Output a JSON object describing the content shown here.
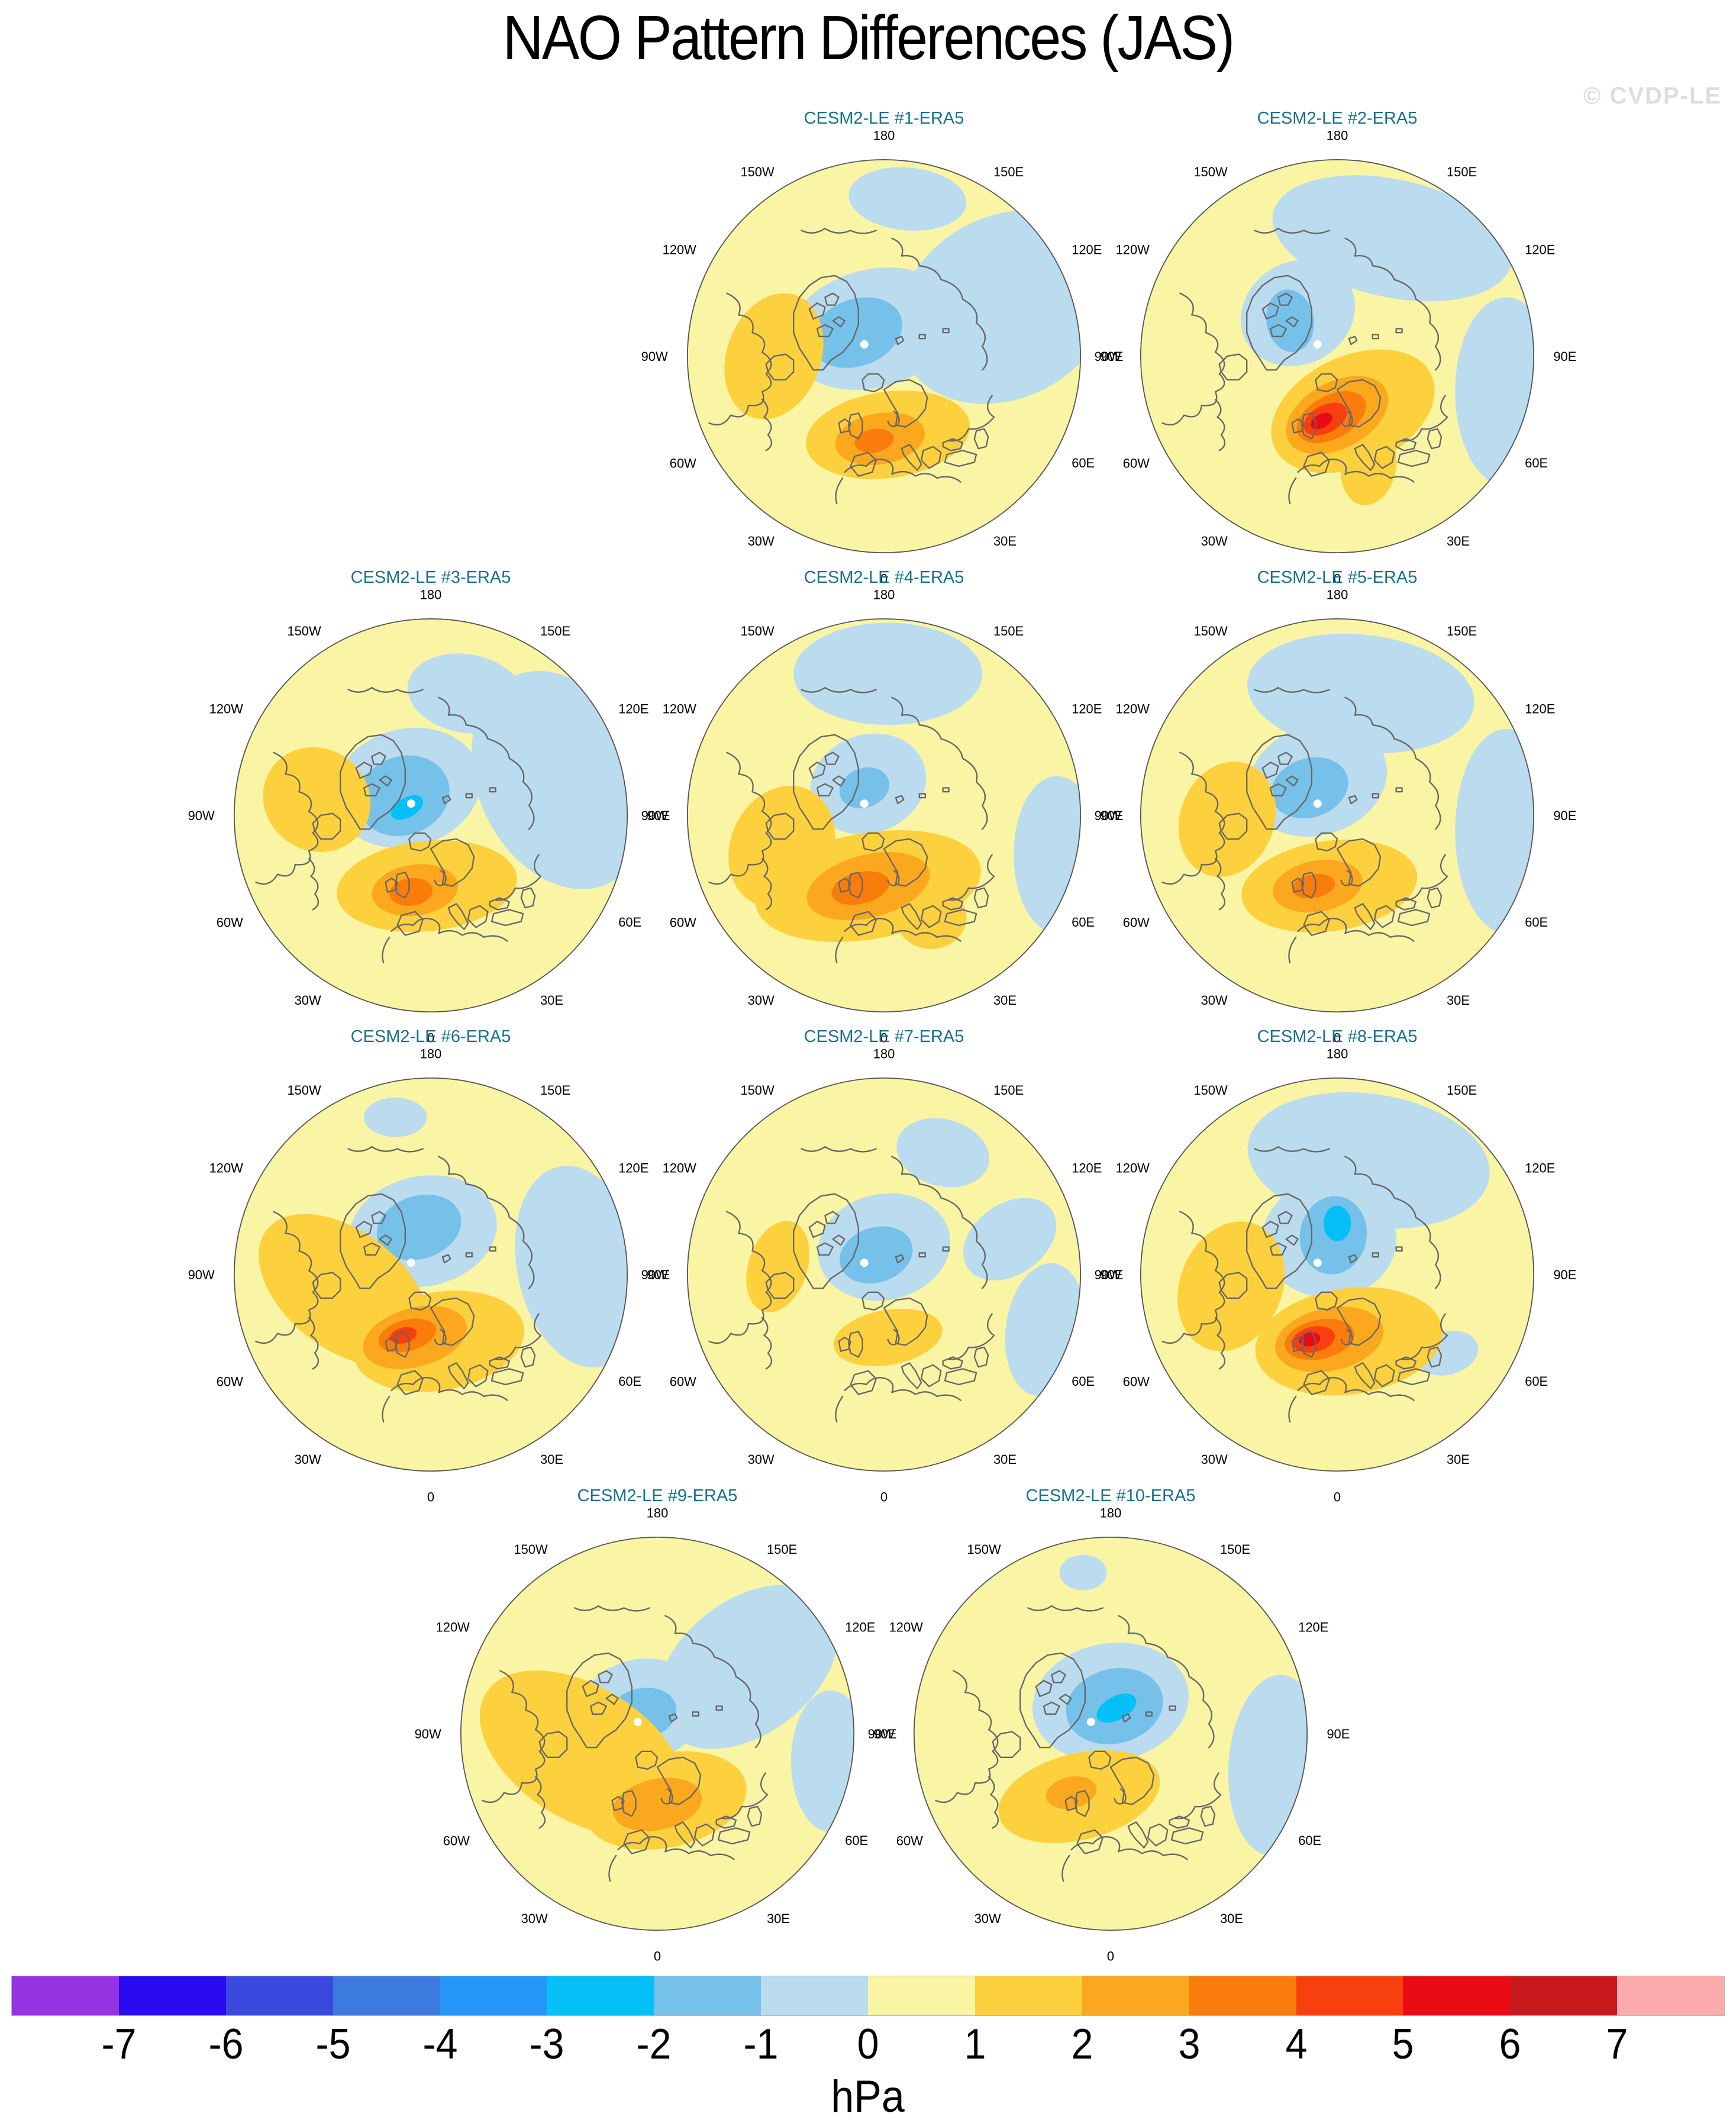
{
  "title": "NAO Pattern Differences (JAS)",
  "watermark": "© CVDP-LE",
  "panels": [
    {
      "title": "CESM2-LE #1-ERA5",
      "blobs": [
        [
          "n1",
          62,
          -25,
          58,
          46,
          -30
        ],
        [
          "n1",
          12,
          -80,
          30,
          16,
          5
        ],
        [
          "n1",
          -6,
          -14,
          44,
          30,
          -15
        ],
        [
          "n2",
          -14,
          -12,
          24,
          17,
          -20
        ],
        [
          "P1",
          -56,
          0,
          24,
          33,
          20
        ],
        [
          "P1",
          2,
          40,
          42,
          22,
          -8
        ],
        [
          "P2",
          -2,
          42,
          23,
          13,
          -10
        ],
        [
          "P3",
          -5,
          43,
          10,
          6,
          -10
        ]
      ]
    },
    {
      "title": "CESM2-LE #2-ERA5",
      "blobs": [
        [
          "n1",
          28,
          -60,
          62,
          30,
          12
        ],
        [
          "n1",
          86,
          18,
          26,
          48,
          0
        ],
        [
          "n1",
          -20,
          -22,
          30,
          26,
          -30
        ],
        [
          "n2",
          -24,
          -18,
          12,
          16,
          -10
        ],
        [
          "P1",
          16,
          56,
          14,
          20,
          10
        ],
        [
          "P1",
          8,
          28,
          44,
          28,
          -25
        ],
        [
          "P2",
          0,
          30,
          28,
          17,
          -28
        ],
        [
          "P3",
          -3,
          31,
          19,
          11,
          -28
        ],
        [
          "P4",
          -6,
          32,
          12,
          7,
          -28
        ],
        [
          "P5",
          -8,
          33,
          6,
          3.5,
          -28
        ]
      ]
    },
    {
      "title": "CESM2-LE #3-ERA5",
      "blobs": [
        [
          "n1",
          66,
          -18,
          42,
          58,
          -25
        ],
        [
          "n1",
          18,
          -62,
          30,
          20,
          10
        ],
        [
          "n1",
          -12,
          -14,
          38,
          30,
          -15
        ],
        [
          "n2",
          -14,
          -10,
          24,
          20,
          -20
        ],
        [
          "n3",
          -12,
          -4,
          9,
          5,
          -30
        ],
        [
          "P1",
          -58,
          -8,
          28,
          26,
          35
        ],
        [
          "P1",
          -2,
          36,
          46,
          23,
          -6
        ],
        [
          "P2",
          -8,
          38,
          22,
          13,
          -8
        ],
        [
          "P3",
          -10,
          39,
          11,
          7,
          -8
        ]
      ]
    },
    {
      "title": "CESM2-LE #4-ERA5",
      "blobs": [
        [
          "n1",
          2,
          -72,
          48,
          26,
          0
        ],
        [
          "n1",
          88,
          20,
          22,
          40,
          0
        ],
        [
          "n1",
          -8,
          -16,
          30,
          25,
          -20
        ],
        [
          "n2",
          -10,
          -14,
          13,
          10,
          -20
        ],
        [
          "P1",
          -52,
          16,
          26,
          32,
          25
        ],
        [
          "P1",
          24,
          52,
          18,
          16,
          0
        ],
        [
          "P1",
          -8,
          36,
          58,
          27,
          -10
        ],
        [
          "P2",
          -8,
          36,
          32,
          16,
          -14
        ],
        [
          "P3",
          -12,
          37,
          15,
          8,
          -14
        ]
      ]
    },
    {
      "title": "CESM2-LE #5-ERA5",
      "blobs": [
        [
          "n1",
          12,
          -62,
          58,
          30,
          6
        ],
        [
          "n1",
          86,
          8,
          26,
          52,
          0
        ],
        [
          "n1",
          -10,
          -18,
          36,
          28,
          -18
        ],
        [
          "n2",
          -14,
          -14,
          20,
          15,
          -18
        ],
        [
          "P1",
          -56,
          2,
          24,
          30,
          20
        ],
        [
          "P1",
          -4,
          36,
          45,
          23,
          -8
        ],
        [
          "P2",
          -10,
          36,
          23,
          13,
          -10
        ],
        [
          "P3",
          -12,
          36,
          11,
          6,
          -10
        ]
      ]
    },
    {
      "title": "CESM2-LE #6-ERA5",
      "blobs": [
        [
          "n1",
          76,
          -4,
          32,
          52,
          -12
        ],
        [
          "n1",
          -18,
          -80,
          16,
          10,
          0
        ],
        [
          "n1",
          -4,
          -22,
          38,
          28,
          -12
        ],
        [
          "n2",
          -6,
          -24,
          22,
          16,
          -18
        ],
        [
          "P1",
          -44,
          8,
          50,
          30,
          38
        ],
        [
          "P1",
          4,
          34,
          44,
          25,
          -10
        ],
        [
          "P2",
          -8,
          32,
          27,
          15,
          -15
        ],
        [
          "P3",
          -12,
          31,
          15,
          8,
          -15
        ],
        [
          "P4",
          -14,
          31,
          7,
          4,
          -15
        ]
      ]
    },
    {
      "title": "CESM2-LE #7-ERA5",
      "blobs": [
        [
          "n1",
          30,
          -62,
          24,
          17,
          15
        ],
        [
          "n1",
          64,
          -18,
          26,
          18,
          -35
        ],
        [
          "n1",
          82,
          28,
          20,
          34,
          8
        ],
        [
          "n1",
          0,
          -14,
          34,
          27,
          -12
        ],
        [
          "n2",
          -4,
          -10,
          19,
          14,
          -18
        ],
        [
          "P1",
          -54,
          -4,
          15,
          24,
          18
        ],
        [
          "P1",
          2,
          32,
          28,
          14,
          -10
        ]
      ]
    },
    {
      "title": "CESM2-LE #8-ERA5",
      "blobs": [
        [
          "n1",
          16,
          -58,
          62,
          34,
          8
        ],
        [
          "n1",
          56,
          40,
          16,
          11,
          -15
        ],
        [
          "n1",
          -4,
          -18,
          34,
          30,
          0
        ],
        [
          "n2",
          -2,
          -20,
          17,
          20,
          10
        ],
        [
          "n3",
          0,
          -26,
          7,
          9,
          0
        ],
        [
          "P1",
          -54,
          6,
          26,
          34,
          22
        ],
        [
          "P1",
          6,
          34,
          48,
          27,
          -8
        ],
        [
          "P2",
          -4,
          33,
          28,
          16,
          -12
        ],
        [
          "P3",
          -9,
          33,
          18,
          10,
          -12
        ],
        [
          "P4",
          -12,
          33,
          11,
          6.5,
          -12
        ],
        [
          "P5",
          -14,
          33,
          5.5,
          3.5,
          -12
        ]
      ]
    },
    {
      "title": "CESM2-LE #9-ERA5",
      "blobs": [
        [
          "n1",
          46,
          -34,
          52,
          34,
          -38
        ],
        [
          "n1",
          88,
          14,
          20,
          36,
          0
        ],
        [
          "n1",
          -8,
          -12,
          32,
          26,
          -12
        ],
        [
          "n2",
          -8,
          -10,
          18,
          13,
          -15
        ],
        [
          "P1",
          -38,
          10,
          58,
          34,
          32
        ],
        [
          "P1",
          4,
          34,
          42,
          24,
          -12
        ],
        [
          "P2",
          0,
          36,
          23,
          13,
          -12
        ]
      ]
    },
    {
      "title": "CESM2-LE #10-ERA5",
      "blobs": [
        [
          "n1",
          84,
          16,
          24,
          46,
          4
        ],
        [
          "n1",
          -14,
          -82,
          12,
          9,
          0
        ],
        [
          "n1",
          0,
          -16,
          40,
          30,
          -10
        ],
        [
          "n2",
          2,
          -14,
          25,
          19,
          -14
        ],
        [
          "n3",
          3,
          -13,
          11,
          6,
          -28
        ],
        [
          "P1",
          -16,
          32,
          42,
          22,
          -14
        ],
        [
          "P2",
          -20,
          30,
          13,
          8,
          -12
        ]
      ]
    }
  ],
  "map": {
    "lon_labels": [
      {
        "text": "180",
        "angle": 0
      },
      {
        "text": "150E",
        "angle": 30
      },
      {
        "text": "120E",
        "angle": 60
      },
      {
        "text": "90E",
        "angle": 90
      },
      {
        "text": "60E",
        "angle": 120
      },
      {
        "text": "30E",
        "angle": 150
      },
      {
        "text": "0",
        "angle": 180
      },
      {
        "text": "30W",
        "angle": 210
      },
      {
        "text": "60W",
        "angle": 240
      },
      {
        "text": "90W",
        "angle": 270
      },
      {
        "text": "120W",
        "angle": 300
      },
      {
        "text": "150W",
        "angle": 330
      }
    ],
    "pole_dot": [
      -10,
      -6
    ],
    "pole_dot_color": "#ffffff",
    "coast_color": "#666666",
    "outline_color": "#555555"
  },
  "palette": {
    "base": "#F9F5A4",
    "n1": "#BBDBEF",
    "n2": "#76C1EA",
    "n3": "#04C0F6",
    "P1": "#FDD13D",
    "P2": "#FBA81F",
    "P3": "#FA7D0C",
    "P4": "#F8400F",
    "P5": "#E90C15"
  },
  "colorbar": {
    "colors": [
      "#9632E1",
      "#2A0BF0",
      "#3A49DE",
      "#3D7AE0",
      "#2396F7",
      "#04C0F6",
      "#76C1EA",
      "#BBDBEF",
      "#F9F5A4",
      "#FDD13D",
      "#FBA81F",
      "#FA7D0C",
      "#F8400F",
      "#E90C15",
      "#C8191D",
      "#FCABAD"
    ],
    "ticks": [
      "-7",
      "-6",
      "-5",
      "-4",
      "-3",
      "-2",
      "-1",
      "0",
      "1",
      "2",
      "3",
      "4",
      "5",
      "6",
      "7"
    ],
    "label": "hPa"
  },
  "chart_data": {
    "type": "heatmap",
    "title": "NAO Pattern Differences (JAS)",
    "units": "hPa",
    "projection": "Northern Hemisphere polar stereographic, pole-centered; 180 at top, 0 at bottom, W longitudes left, E longitudes right",
    "longitude_ring_labels": [
      "180",
      "150E",
      "120E",
      "90E",
      "60E",
      "30E",
      "0",
      "30W",
      "60W",
      "90W",
      "120W",
      "150W"
    ],
    "colorbar_boundaries": [
      -7,
      -6,
      -5,
      -4,
      -3,
      -2,
      -1,
      0,
      1,
      2,
      3,
      4,
      5,
      6,
      7
    ],
    "colorbar_colors": [
      "#9632E1",
      "#2A0BF0",
      "#3A49DE",
      "#3D7AE0",
      "#2396F7",
      "#04C0F6",
      "#76C1EA",
      "#BBDBEF",
      "#F9F5A4",
      "#FDD13D",
      "#FBA81F",
      "#FA7D0C",
      "#F8400F",
      "#E90C15",
      "#C8191D",
      "#FCABAD"
    ],
    "panels": [
      {
        "name": "CESM2-LE #1-ERA5",
        "approx_max_hPa": 3.5,
        "approx_min_hPa": -1.5,
        "max_location": "North Sea / British Isles",
        "min_location": "Arctic Ocean near Greenland"
      },
      {
        "name": "CESM2-LE #2-ERA5",
        "approx_max_hPa": 5.5,
        "approx_min_hPa": -1.5,
        "max_location": "Norwegian Sea / Scandinavia",
        "min_location": "Greenland"
      },
      {
        "name": "CESM2-LE #3-ERA5",
        "approx_max_hPa": 3.5,
        "approx_min_hPa": -2.5,
        "max_location": "British Isles / North Sea",
        "min_location": "Greenland / Arctic"
      },
      {
        "name": "CESM2-LE #4-ERA5",
        "approx_max_hPa": 3.5,
        "approx_min_hPa": -1.5,
        "max_location": "British Isles / North Sea",
        "min_location": "Greenland"
      },
      {
        "name": "CESM2-LE #5-ERA5",
        "approx_max_hPa": 3.5,
        "approx_min_hPa": -1.5,
        "max_location": "Ireland / British Isles",
        "min_location": "Canadian Arctic / Greenland"
      },
      {
        "name": "CESM2-LE #6-ERA5",
        "approx_max_hPa": 4.5,
        "approx_min_hPa": -1.5,
        "max_location": "Scotland / NE Atlantic",
        "min_location": "Greenland Sea"
      },
      {
        "name": "CESM2-LE #7-ERA5",
        "approx_max_hPa": 1.5,
        "approx_min_hPa": -1.5,
        "max_location": "UK / Scandinavia (weak)",
        "min_location": "Arctic near Greenland"
      },
      {
        "name": "CESM2-LE #8-ERA5",
        "approx_max_hPa": 5.5,
        "approx_min_hPa": -2.5,
        "max_location": "British Isles",
        "min_location": "Greenland / Scandinavia Arctic"
      },
      {
        "name": "CESM2-LE #9-ERA5",
        "approx_max_hPa": 2.5,
        "approx_min_hPa": -1.5,
        "max_location": "UK / North Sea, broad positive over Canada-Atlantic",
        "min_location": "Greenland / Arctic"
      },
      {
        "name": "CESM2-LE #10-ERA5",
        "approx_max_hPa": 2.5,
        "approx_min_hPa": -2.5,
        "max_location": "West of Ireland",
        "min_location": "Arctic between Greenland and Svalbard"
      }
    ],
    "description": "Ten pole-centered maps of sea level pressure NAO pattern differences (CESM2-LE members minus ERA5), July-September; yellow/orange/red shading positive hPa, blue shading negative hPa."
  }
}
